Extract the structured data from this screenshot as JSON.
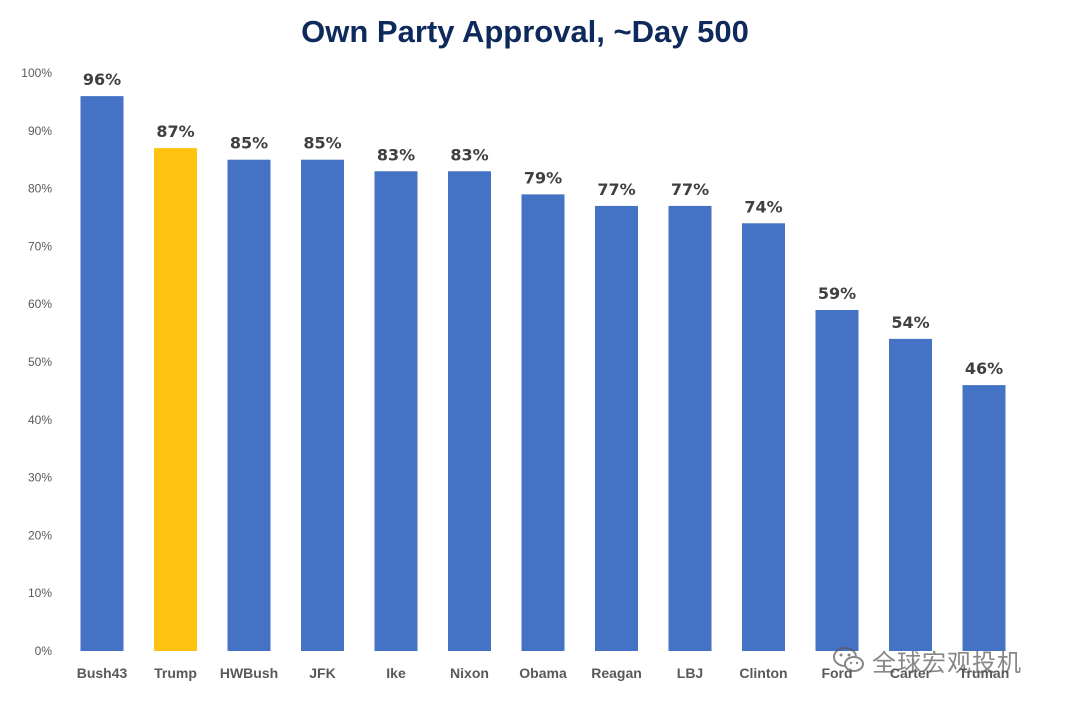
{
  "title": "Own Party Approval, ~Day 500",
  "watermark": "全球宏观投机",
  "colors": {
    "bar_default": "#4472c4",
    "bar_highlight": "#ffc20e",
    "title": "#0e2a5c",
    "axis_text": "#595959",
    "data_label": "#404040"
  },
  "chart_data": {
    "type": "bar",
    "title": "Own Party Approval, ~Day 500",
    "xlabel": "",
    "ylabel": "",
    "categories": [
      "Bush43",
      "Trump",
      "HWBush",
      "JFK",
      "Ike",
      "Nixon",
      "Obama",
      "Reagan",
      "LBJ",
      "Clinton",
      "Ford",
      "Carter",
      "Truman"
    ],
    "values": [
      96,
      87,
      85,
      85,
      83,
      83,
      79,
      77,
      77,
      74,
      59,
      54,
      46
    ],
    "data_labels": [
      "96%",
      "87%",
      "85%",
      "85%",
      "83%",
      "83%",
      "79%",
      "77%",
      "77%",
      "74%",
      "59%",
      "54%",
      "46%"
    ],
    "highlight": "Trump",
    "ylim": [
      0,
      100
    ],
    "yticks": [
      "0%",
      "10%",
      "20%",
      "30%",
      "40%",
      "50%",
      "60%",
      "70%",
      "80%",
      "90%",
      "100%"
    ],
    "grid": false,
    "legend": "none"
  }
}
